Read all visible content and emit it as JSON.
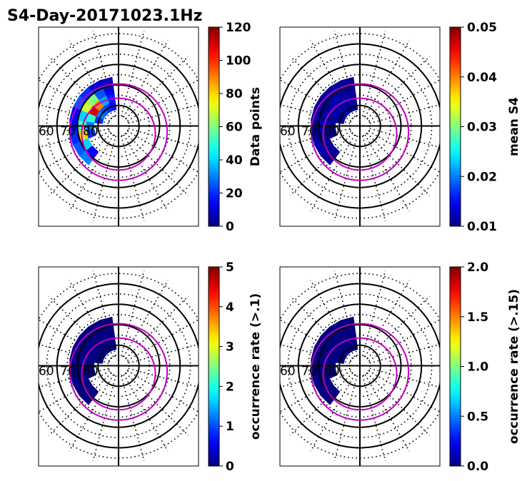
{
  "figure": {
    "title": "S4-Day-20171023.1Hz"
  },
  "chart_data": [
    {
      "type": "heatmap",
      "projection": "polar",
      "panel": "top-left",
      "colorbar_label": "Data points",
      "clim": [
        0,
        120
      ],
      "colorbar_ticks": [
        "0",
        "20",
        "40",
        "60",
        "80",
        "100",
        "120"
      ],
      "lat_labels": [
        "60",
        "70",
        "80"
      ],
      "oval_color": "#bf00bf",
      "cells": [
        {
          "lat": 80,
          "mlt": 13,
          "value": 15
        },
        {
          "lat": 76,
          "mlt": 13,
          "value": 18
        },
        {
          "lat": 72,
          "mlt": 13,
          "value": 12
        },
        {
          "lat": 68,
          "mlt": 13,
          "value": 8
        },
        {
          "lat": 80,
          "mlt": 14,
          "value": 20
        },
        {
          "lat": 76,
          "mlt": 14,
          "value": 35
        },
        {
          "lat": 72,
          "mlt": 14,
          "value": 25
        },
        {
          "lat": 68,
          "mlt": 14,
          "value": 10
        },
        {
          "lat": 80,
          "mlt": 15,
          "value": 25
        },
        {
          "lat": 76,
          "mlt": 15,
          "value": 90
        },
        {
          "lat": 72,
          "mlt": 15,
          "value": 60
        },
        {
          "lat": 68,
          "mlt": 15,
          "value": 20
        },
        {
          "lat": 80,
          "mlt": 16,
          "value": 30
        },
        {
          "lat": 76,
          "mlt": 16,
          "value": 110
        },
        {
          "lat": 72,
          "mlt": 16,
          "value": 70
        },
        {
          "lat": 68,
          "mlt": 16,
          "value": 25
        },
        {
          "lat": 80,
          "mlt": 17,
          "value": 20
        },
        {
          "lat": 76,
          "mlt": 17,
          "value": 50
        },
        {
          "lat": 72,
          "mlt": 17,
          "value": 40
        },
        {
          "lat": 68,
          "mlt": 17,
          "value": 15
        },
        {
          "lat": 76,
          "mlt": 18,
          "value": 30
        },
        {
          "lat": 72,
          "mlt": 18,
          "value": 55
        },
        {
          "lat": 68,
          "mlt": 18,
          "value": 15
        },
        {
          "lat": 76,
          "mlt": 19,
          "value": 20
        },
        {
          "lat": 72,
          "mlt": 19,
          "value": 80
        },
        {
          "lat": 68,
          "mlt": 19,
          "value": 20
        },
        {
          "lat": 72,
          "mlt": 20,
          "value": 40
        },
        {
          "lat": 68,
          "mlt": 20,
          "value": 25
        },
        {
          "lat": 72,
          "mlt": 21,
          "value": 15
        },
        {
          "lat": 68,
          "mlt": 21,
          "value": 30
        }
      ]
    },
    {
      "type": "heatmap",
      "projection": "polar",
      "panel": "top-right",
      "colorbar_label": "mean S4",
      "clim": [
        0.01,
        0.05
      ],
      "colorbar_ticks": [
        "0.01",
        "0.02",
        "0.03",
        "0.04",
        "0.05"
      ],
      "lat_labels": [
        "60",
        "70",
        "80"
      ],
      "oval_color": "#bf00bf",
      "cells": [
        {
          "lat": 80,
          "mlt": 13,
          "value": 0.011
        },
        {
          "lat": 76,
          "mlt": 13,
          "value": 0.011
        },
        {
          "lat": 72,
          "mlt": 13,
          "value": 0.011
        },
        {
          "lat": 68,
          "mlt": 13,
          "value": 0.011
        },
        {
          "lat": 80,
          "mlt": 14,
          "value": 0.011
        },
        {
          "lat": 76,
          "mlt": 14,
          "value": 0.012
        },
        {
          "lat": 72,
          "mlt": 14,
          "value": 0.011
        },
        {
          "lat": 68,
          "mlt": 14,
          "value": 0.011
        },
        {
          "lat": 80,
          "mlt": 15,
          "value": 0.012
        },
        {
          "lat": 76,
          "mlt": 15,
          "value": 0.011
        },
        {
          "lat": 72,
          "mlt": 15,
          "value": 0.012
        },
        {
          "lat": 68,
          "mlt": 15,
          "value": 0.011
        },
        {
          "lat": 80,
          "mlt": 16,
          "value": 0.011
        },
        {
          "lat": 76,
          "mlt": 16,
          "value": 0.012
        },
        {
          "lat": 72,
          "mlt": 16,
          "value": 0.011
        },
        {
          "lat": 68,
          "mlt": 16,
          "value": 0.011
        },
        {
          "lat": 80,
          "mlt": 17,
          "value": 0.011
        },
        {
          "lat": 76,
          "mlt": 17,
          "value": 0.011
        },
        {
          "lat": 72,
          "mlt": 17,
          "value": 0.011
        },
        {
          "lat": 68,
          "mlt": 17,
          "value": 0.011
        },
        {
          "lat": 76,
          "mlt": 18,
          "value": 0.011
        },
        {
          "lat": 72,
          "mlt": 18,
          "value": 0.012
        },
        {
          "lat": 68,
          "mlt": 18,
          "value": 0.011
        },
        {
          "lat": 76,
          "mlt": 19,
          "value": 0.011
        },
        {
          "lat": 72,
          "mlt": 19,
          "value": 0.011
        },
        {
          "lat": 68,
          "mlt": 19,
          "value": 0.011
        },
        {
          "lat": 72,
          "mlt": 20,
          "value": 0.011
        },
        {
          "lat": 68,
          "mlt": 20,
          "value": 0.012
        },
        {
          "lat": 72,
          "mlt": 21,
          "value": 0.011
        },
        {
          "lat": 68,
          "mlt": 21,
          "value": 0.011
        }
      ]
    },
    {
      "type": "heatmap",
      "projection": "polar",
      "panel": "bottom-left",
      "colorbar_label": "occurrence rate (>.1)",
      "clim": [
        0,
        5
      ],
      "colorbar_ticks": [
        "0",
        "1",
        "2",
        "3",
        "4",
        "5"
      ],
      "lat_labels": [
        "60",
        "70",
        "80"
      ],
      "oval_color": "#bf00bf",
      "cells": [
        {
          "lat": 80,
          "mlt": 13,
          "value": 0
        },
        {
          "lat": 76,
          "mlt": 13,
          "value": 0
        },
        {
          "lat": 72,
          "mlt": 13,
          "value": 0
        },
        {
          "lat": 68,
          "mlt": 13,
          "value": 0
        },
        {
          "lat": 80,
          "mlt": 14,
          "value": 0
        },
        {
          "lat": 76,
          "mlt": 14,
          "value": 0
        },
        {
          "lat": 72,
          "mlt": 14,
          "value": 0
        },
        {
          "lat": 68,
          "mlt": 14,
          "value": 0
        },
        {
          "lat": 80,
          "mlt": 15,
          "value": 0
        },
        {
          "lat": 76,
          "mlt": 15,
          "value": 0
        },
        {
          "lat": 72,
          "mlt": 15,
          "value": 0
        },
        {
          "lat": 68,
          "mlt": 15,
          "value": 0
        },
        {
          "lat": 80,
          "mlt": 16,
          "value": 0
        },
        {
          "lat": 76,
          "mlt": 16,
          "value": 0
        },
        {
          "lat": 72,
          "mlt": 16,
          "value": 0
        },
        {
          "lat": 68,
          "mlt": 16,
          "value": 0
        },
        {
          "lat": 80,
          "mlt": 17,
          "value": 0
        },
        {
          "lat": 76,
          "mlt": 17,
          "value": 0
        },
        {
          "lat": 72,
          "mlt": 17,
          "value": 0
        },
        {
          "lat": 68,
          "mlt": 17,
          "value": 0
        },
        {
          "lat": 76,
          "mlt": 18,
          "value": 0
        },
        {
          "lat": 72,
          "mlt": 18,
          "value": 0
        },
        {
          "lat": 68,
          "mlt": 18,
          "value": 0
        },
        {
          "lat": 76,
          "mlt": 19,
          "value": 0
        },
        {
          "lat": 72,
          "mlt": 19,
          "value": 0
        },
        {
          "lat": 68,
          "mlt": 19,
          "value": 0
        },
        {
          "lat": 72,
          "mlt": 20,
          "value": 0
        },
        {
          "lat": 68,
          "mlt": 20,
          "value": 0
        },
        {
          "lat": 72,
          "mlt": 21,
          "value": 0
        },
        {
          "lat": 68,
          "mlt": 21,
          "value": 0
        }
      ]
    },
    {
      "type": "heatmap",
      "projection": "polar",
      "panel": "bottom-right",
      "colorbar_label": "occurrence rate (>.15)",
      "clim": [
        0,
        2
      ],
      "colorbar_ticks": [
        "0.0",
        "0.5",
        "1.0",
        "1.5",
        "2.0"
      ],
      "lat_labels": [
        "60",
        "70",
        "80"
      ],
      "oval_color": "#bf00bf",
      "cells": [
        {
          "lat": 80,
          "mlt": 13,
          "value": 0
        },
        {
          "lat": 76,
          "mlt": 13,
          "value": 0
        },
        {
          "lat": 72,
          "mlt": 13,
          "value": 0
        },
        {
          "lat": 68,
          "mlt": 13,
          "value": 0
        },
        {
          "lat": 80,
          "mlt": 14,
          "value": 0
        },
        {
          "lat": 76,
          "mlt": 14,
          "value": 0
        },
        {
          "lat": 72,
          "mlt": 14,
          "value": 0
        },
        {
          "lat": 68,
          "mlt": 14,
          "value": 0
        },
        {
          "lat": 80,
          "mlt": 15,
          "value": 0
        },
        {
          "lat": 76,
          "mlt": 15,
          "value": 0
        },
        {
          "lat": 72,
          "mlt": 15,
          "value": 0
        },
        {
          "lat": 68,
          "mlt": 15,
          "value": 0
        },
        {
          "lat": 80,
          "mlt": 16,
          "value": 0
        },
        {
          "lat": 76,
          "mlt": 16,
          "value": 0
        },
        {
          "lat": 72,
          "mlt": 16,
          "value": 0
        },
        {
          "lat": 68,
          "mlt": 16,
          "value": 0
        },
        {
          "lat": 80,
          "mlt": 17,
          "value": 0
        },
        {
          "lat": 76,
          "mlt": 17,
          "value": 0
        },
        {
          "lat": 72,
          "mlt": 17,
          "value": 0
        },
        {
          "lat": 68,
          "mlt": 17,
          "value": 0
        },
        {
          "lat": 76,
          "mlt": 18,
          "value": 0
        },
        {
          "lat": 72,
          "mlt": 18,
          "value": 0
        },
        {
          "lat": 68,
          "mlt": 18,
          "value": 0
        },
        {
          "lat": 76,
          "mlt": 19,
          "value": 0
        },
        {
          "lat": 72,
          "mlt": 19,
          "value": 0
        },
        {
          "lat": 68,
          "mlt": 19,
          "value": 0
        },
        {
          "lat": 72,
          "mlt": 20,
          "value": 0
        },
        {
          "lat": 68,
          "mlt": 20,
          "value": 0
        },
        {
          "lat": 72,
          "mlt": 21,
          "value": 0
        },
        {
          "lat": 68,
          "mlt": 21,
          "value": 0
        }
      ]
    }
  ]
}
